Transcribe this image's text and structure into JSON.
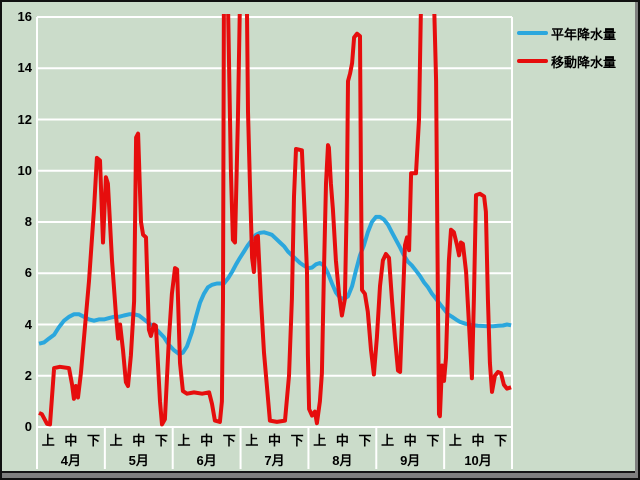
{
  "legend": {
    "items": [
      {
        "label": "平年降水量",
        "color": "#2ba7dd"
      },
      {
        "label": "移動降水量",
        "color": "#e60d0d"
      }
    ]
  },
  "colors": {
    "background": "#cbdcca",
    "gridline": "#ffffff",
    "frame_shadow": "#7f7f7f",
    "text": "#000000",
    "series_normal": "#2ba7dd",
    "series_moving": "#e60d0d"
  },
  "chart_data": {
    "type": "line",
    "title": "",
    "xlabel": "",
    "ylabel": "",
    "x_axis": {
      "months": [
        "4月",
        "5月",
        "6月",
        "7月",
        "8月",
        "9月",
        "10月"
      ],
      "periods": [
        "上",
        "中",
        "下"
      ],
      "note": "x position unit = ten-day period (旬), 0 to 21 across 7 months"
    },
    "y_axis": {
      "min": 0,
      "max": 16,
      "tick_step": 2,
      "ticks": [
        0,
        2,
        4,
        6,
        8,
        10,
        12,
        14,
        16
      ]
    },
    "grid": {
      "horizontal": true,
      "vertical": false,
      "color": "#ffffff"
    },
    "legend_position": "top-right",
    "clip_note": "values recorded as 16.5 exceed the chart top and are clipped at the plot boundary",
    "series": [
      {
        "name": "平年降水量",
        "color": "#2ba7dd",
        "points": [
          [
            0,
            3.25
          ],
          [
            0.22,
            3.3
          ],
          [
            0.44,
            3.45
          ],
          [
            0.67,
            3.6
          ],
          [
            0.89,
            3.9
          ],
          [
            1.11,
            4.15
          ],
          [
            1.33,
            4.3
          ],
          [
            1.55,
            4.4
          ],
          [
            1.78,
            4.4
          ],
          [
            2,
            4.3
          ],
          [
            2.22,
            4.2
          ],
          [
            2.44,
            4.15
          ],
          [
            2.66,
            4.2
          ],
          [
            2.89,
            4.2
          ],
          [
            3.11,
            4.25
          ],
          [
            3.33,
            4.3
          ],
          [
            3.55,
            4.3
          ],
          [
            3.77,
            4.35
          ],
          [
            4,
            4.4
          ],
          [
            4.22,
            4.4
          ],
          [
            4.44,
            4.35
          ],
          [
            4.66,
            4.2
          ],
          [
            4.88,
            4.05
          ],
          [
            5.11,
            3.9
          ],
          [
            5.33,
            3.7
          ],
          [
            5.55,
            3.5
          ],
          [
            5.77,
            3.2
          ],
          [
            5.99,
            3
          ],
          [
            6.22,
            2.85
          ],
          [
            6.39,
            2.9
          ],
          [
            6.57,
            3.15
          ],
          [
            6.79,
            3.7
          ],
          [
            6.97,
            4.3
          ],
          [
            7.15,
            4.85
          ],
          [
            7.32,
            5.2
          ],
          [
            7.5,
            5.45
          ],
          [
            7.68,
            5.55
          ],
          [
            7.9,
            5.6
          ],
          [
            8.21,
            5.6
          ],
          [
            8.39,
            5.8
          ],
          [
            8.57,
            6.05
          ],
          [
            8.75,
            6.35
          ],
          [
            8.92,
            6.6
          ],
          [
            9.1,
            6.85
          ],
          [
            9.28,
            7.1
          ],
          [
            9.46,
            7.3
          ],
          [
            9.63,
            7.5
          ],
          [
            9.81,
            7.58
          ],
          [
            9.99,
            7.6
          ],
          [
            10.17,
            7.55
          ],
          [
            10.34,
            7.5
          ],
          [
            10.52,
            7.35
          ],
          [
            10.7,
            7.2
          ],
          [
            10.88,
            7.05
          ],
          [
            11.05,
            6.85
          ],
          [
            11.23,
            6.7
          ],
          [
            11.41,
            6.55
          ],
          [
            11.59,
            6.4
          ],
          [
            11.76,
            6.3
          ],
          [
            11.94,
            6.2
          ],
          [
            12.12,
            6.22
          ],
          [
            12.3,
            6.35
          ],
          [
            12.47,
            6.4
          ],
          [
            12.65,
            6.3
          ],
          [
            12.83,
            6
          ],
          [
            13.01,
            5.6
          ],
          [
            13.18,
            5.25
          ],
          [
            13.36,
            5.05
          ],
          [
            13.54,
            5
          ],
          [
            13.72,
            5.1
          ],
          [
            13.9,
            5.5
          ],
          [
            14.07,
            6.1
          ],
          [
            14.25,
            6.7
          ],
          [
            14.43,
            7.1
          ],
          [
            14.6,
            7.6
          ],
          [
            14.78,
            8
          ],
          [
            14.96,
            8.2
          ],
          [
            15.14,
            8.2
          ],
          [
            15.31,
            8.1
          ],
          [
            15.49,
            7.9
          ],
          [
            15.67,
            7.6
          ],
          [
            15.85,
            7.3
          ],
          [
            16.03,
            7
          ],
          [
            16.2,
            6.7
          ],
          [
            16.38,
            6.45
          ],
          [
            16.56,
            6.3
          ],
          [
            16.74,
            6.1
          ],
          [
            16.91,
            5.9
          ],
          [
            17.09,
            5.65
          ],
          [
            17.27,
            5.45
          ],
          [
            17.45,
            5.2
          ],
          [
            17.63,
            5
          ],
          [
            17.8,
            4.8
          ],
          [
            17.98,
            4.6
          ],
          [
            18.16,
            4.4
          ],
          [
            18.34,
            4.3
          ],
          [
            18.51,
            4.2
          ],
          [
            18.69,
            4.1
          ],
          [
            18.87,
            4.05
          ],
          [
            19.05,
            4
          ],
          [
            19.27,
            3.97
          ],
          [
            19.49,
            3.95
          ],
          [
            19.71,
            3.94
          ],
          [
            19.93,
            3.93
          ],
          [
            20.16,
            3.93
          ],
          [
            20.38,
            3.95
          ],
          [
            20.6,
            3.96
          ],
          [
            20.78,
            4
          ],
          [
            20.96,
            3.97
          ]
        ]
      },
      {
        "name": "移動降水量",
        "color": "#e60d0d",
        "points": [
          [
            0,
            0.55
          ],
          [
            0.13,
            0.5
          ],
          [
            0.36,
            0.12
          ],
          [
            0.49,
            0.1
          ],
          [
            0.67,
            2.3
          ],
          [
            0.93,
            2.35
          ],
          [
            1.33,
            2.3
          ],
          [
            1.47,
            1.65
          ],
          [
            1.55,
            1.1
          ],
          [
            1.64,
            1.6
          ],
          [
            1.73,
            1.15
          ],
          [
            1.86,
            2.1
          ],
          [
            2.22,
            5.7
          ],
          [
            2.44,
            8.5
          ],
          [
            2.57,
            10.5
          ],
          [
            2.71,
            10.4
          ],
          [
            2.84,
            7.2
          ],
          [
            2.97,
            9.75
          ],
          [
            3.06,
            9.5
          ],
          [
            3.24,
            6.5
          ],
          [
            3.42,
            4.35
          ],
          [
            3.51,
            3.45
          ],
          [
            3.6,
            4
          ],
          [
            3.73,
            3
          ],
          [
            3.86,
            1.75
          ],
          [
            3.95,
            1.6
          ],
          [
            4.08,
            2.8
          ],
          [
            4.22,
            4.9
          ],
          [
            4.31,
            11.3
          ],
          [
            4.4,
            11.45
          ],
          [
            4.53,
            8
          ],
          [
            4.62,
            7.5
          ],
          [
            4.75,
            7.4
          ],
          [
            4.88,
            3.8
          ],
          [
            4.97,
            3.55
          ],
          [
            5.1,
            4
          ],
          [
            5.19,
            3.95
          ],
          [
            5.37,
            1
          ],
          [
            5.46,
            0.1
          ],
          [
            5.59,
            0.3
          ],
          [
            5.77,
            3.5
          ],
          [
            5.9,
            5.2
          ],
          [
            6.04,
            6.2
          ],
          [
            6.13,
            6.15
          ],
          [
            6.26,
            2.5
          ],
          [
            6.39,
            1.4
          ],
          [
            6.57,
            1.3
          ],
          [
            6.88,
            1.35
          ],
          [
            7.24,
            1.3
          ],
          [
            7.55,
            1.35
          ],
          [
            7.68,
            0.9
          ],
          [
            7.81,
            0.25
          ],
          [
            8.03,
            0.2
          ],
          [
            8.12,
            1
          ],
          [
            8.17,
            5
          ],
          [
            8.21,
            16.5
          ],
          [
            8.39,
            16.5
          ],
          [
            8.52,
            10
          ],
          [
            8.61,
            7.3
          ],
          [
            8.7,
            7.2
          ],
          [
            8.83,
            12
          ],
          [
            8.92,
            16.5
          ],
          [
            9.23,
            16.5
          ],
          [
            9.28,
            12.3
          ],
          [
            9.37,
            9.4
          ],
          [
            9.46,
            6.6
          ],
          [
            9.54,
            6.05
          ],
          [
            9.63,
            7.4
          ],
          [
            9.72,
            7.45
          ],
          [
            9.85,
            5
          ],
          [
            9.99,
            2.9
          ],
          [
            10.12,
            1.6
          ],
          [
            10.25,
            0.25
          ],
          [
            10.56,
            0.2
          ],
          [
            10.92,
            0.25
          ],
          [
            11.1,
            2
          ],
          [
            11.23,
            5
          ],
          [
            11.32,
            9
          ],
          [
            11.41,
            10.85
          ],
          [
            11.67,
            10.8
          ],
          [
            11.81,
            8
          ],
          [
            11.9,
            6.05
          ],
          [
            11.94,
            2.8
          ],
          [
            11.99,
            0.7
          ],
          [
            12.12,
            0.45
          ],
          [
            12.25,
            0.6
          ],
          [
            12.34,
            0.15
          ],
          [
            12.47,
            1
          ],
          [
            12.56,
            2.1
          ],
          [
            12.65,
            6
          ],
          [
            12.74,
            9.5
          ],
          [
            12.83,
            11
          ],
          [
            12.87,
            10.9
          ],
          [
            12.96,
            9.5
          ],
          [
            13.05,
            8.5
          ],
          [
            13.18,
            6.5
          ],
          [
            13.32,
            5.2
          ],
          [
            13.45,
            4.35
          ],
          [
            13.58,
            5
          ],
          [
            13.67,
            9
          ],
          [
            13.72,
            13.5
          ],
          [
            13.81,
            13.8
          ],
          [
            13.9,
            14.2
          ],
          [
            13.99,
            15.2
          ],
          [
            14.12,
            15.35
          ],
          [
            14.25,
            15.25
          ],
          [
            14.29,
            10
          ],
          [
            14.34,
            5.35
          ],
          [
            14.47,
            5.2
          ],
          [
            14.6,
            4.5
          ],
          [
            14.74,
            3
          ],
          [
            14.87,
            2.05
          ],
          [
            15,
            3.5
          ],
          [
            15.14,
            5.5
          ],
          [
            15.27,
            6.5
          ],
          [
            15.4,
            6.75
          ],
          [
            15.54,
            6.6
          ],
          [
            15.67,
            5
          ],
          [
            15.8,
            3.5
          ],
          [
            15.94,
            2.2
          ],
          [
            16.03,
            2.15
          ],
          [
            16.11,
            4
          ],
          [
            16.25,
            7.1
          ],
          [
            16.34,
            7.4
          ],
          [
            16.43,
            6.9
          ],
          [
            16.52,
            9.9
          ],
          [
            16.74,
            9.9
          ],
          [
            16.87,
            12
          ],
          [
            16.96,
            16.5
          ],
          [
            17.54,
            16.5
          ],
          [
            17.63,
            13.5
          ],
          [
            17.71,
            5
          ],
          [
            17.76,
            0.5
          ],
          [
            17.8,
            0.42
          ],
          [
            17.89,
            2.4
          ],
          [
            17.98,
            1.8
          ],
          [
            18.07,
            2.7
          ],
          [
            18.2,
            6.5
          ],
          [
            18.29,
            7.7
          ],
          [
            18.42,
            7.6
          ],
          [
            18.56,
            7.1
          ],
          [
            18.65,
            6.7
          ],
          [
            18.73,
            7.2
          ],
          [
            18.82,
            7.15
          ],
          [
            18.96,
            6.05
          ],
          [
            19.09,
            4
          ],
          [
            19.22,
            1.9
          ],
          [
            19.31,
            5
          ],
          [
            19.4,
            9.05
          ],
          [
            19.58,
            9.1
          ],
          [
            19.76,
            9
          ],
          [
            19.84,
            8.4
          ],
          [
            19.93,
            5
          ],
          [
            20.02,
            2.5
          ],
          [
            20.11,
            1.37
          ],
          [
            20.24,
            2
          ],
          [
            20.38,
            2.15
          ],
          [
            20.51,
            2.1
          ],
          [
            20.64,
            1.65
          ],
          [
            20.78,
            1.5
          ],
          [
            20.96,
            1.55
          ]
        ]
      }
    ]
  }
}
